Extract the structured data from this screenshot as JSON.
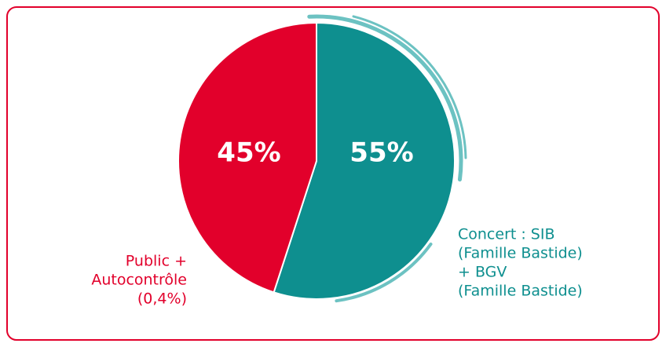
{
  "chart_data": {
    "type": "pie",
    "categories": [
      [
        "Concert : SIB",
        "(Famille Bastide)",
        "+ BGV",
        "(Famille Bastide)"
      ],
      [
        "Public +",
        "Autocontrôle",
        "(0,4%)"
      ]
    ],
    "values": [
      55,
      45
    ],
    "value_labels": [
      "55%",
      "45%"
    ],
    "colors": [
      "#0e8f8f",
      "#e2002b"
    ]
  }
}
